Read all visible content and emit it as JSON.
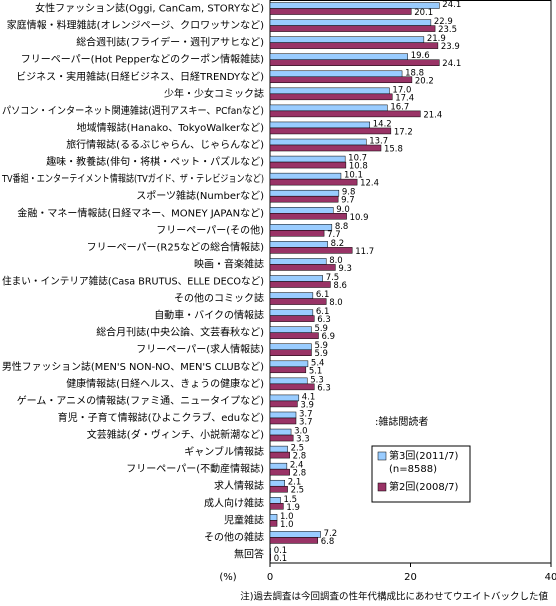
{
  "chart_data": {
    "type": "hbar",
    "categories": [
      "女性ファッション誌(Oggi, CanCam, STORYなど)",
      "家庭情報・料理雑誌(オレンジページ、クロワッサンなど)",
      "総合週刊誌(フライデー・週刊アサヒなど)",
      "フリーペーパー(Hot Pepperなどのクーポン情報雑誌)",
      "ビジネス・実用雑誌(日経ビジネス、日経TRENDYなど)",
      "少年・少女コミック誌",
      "パソコン・インターネット関連雑誌(週刊アスキー、PCfanなど)",
      "地域情報誌(Hanako、TokyoWalkerなど)",
      "旅行情報誌(るるぶじゃらん、じゃらんなど)",
      "趣味・教養誌(俳句・将棋・ペット・パズルなど)",
      "TV番組・エンターテイメント情報誌(TVガイド、ザ・テレビジョンなど)",
      "スポーツ雑誌(Numberなど)",
      "金融・マネー情報誌(日経マネー、MONEY JAPANなど)",
      "フリーペーパー(その他)",
      "フリーペーパー(R25などの総合情報誌)",
      "映画・音楽雑誌",
      "住まい・インテリア雑誌(Casa BRUTUS、ELLE DECOなど)",
      "その他のコミック誌",
      "自動車・バイクの情報誌",
      "総合月刊誌(中央公論、文芸春秋など)",
      "フリーペーパー(求人情報誌)",
      "男性ファッション誌(MEN'S NON-NO、MEN'S CLUBなど)",
      "健康情報誌(日経ヘルス、きょうの健康など)",
      "ゲーム・アニメの情報誌(ファミ通、ニュータイプなど)",
      "育児・子育て情報誌(ひよこクラブ、eduなど)",
      "文芸雑誌(ダ・ヴィンチ、小説新潮など)",
      "ギャンブル情報誌",
      "フリーペーパー(不動産情報誌)",
      "求人情報誌",
      "成人向け雑誌",
      "児童雑誌",
      "その他の雑誌",
      "無回答"
    ],
    "series": [
      {
        "name": "第3回(2011/7)",
        "note": "(n=8588)",
        "color": "#99ccff",
        "values": [
          24.1,
          22.9,
          21.9,
          19.6,
          18.8,
          17.0,
          16.7,
          14.2,
          13.7,
          10.7,
          10.1,
          9.8,
          9.0,
          8.8,
          8.2,
          8.0,
          7.5,
          6.1,
          6.1,
          5.9,
          5.9,
          5.4,
          5.3,
          4.1,
          3.7,
          3.0,
          2.5,
          2.4,
          2.1,
          1.5,
          1.0,
          7.2,
          0.1
        ],
        "value_labels": [
          "24.1",
          "22.9",
          "21.9",
          "19.6",
          "18.8",
          "17.0",
          "16.7",
          "14.2",
          "13.7",
          "10.7",
          "10.1",
          "9.8",
          "9.0",
          "8.8",
          "8.2",
          "8.0",
          "7.5",
          "6.1",
          "6.1",
          "5.9",
          "5.9",
          "5.4",
          "5.3",
          "4.1",
          "3.7",
          "3.0",
          "2.5",
          "2.4",
          "2.1",
          "1.5",
          "1.0",
          "7.2",
          "0.1"
        ]
      },
      {
        "name": "第2回(2008/7)",
        "color": "#993366",
        "values": [
          20.1,
          23.5,
          23.9,
          24.1,
          20.2,
          17.4,
          21.4,
          17.2,
          15.8,
          10.8,
          12.4,
          9.7,
          10.9,
          7.7,
          11.7,
          9.3,
          8.6,
          8.0,
          6.3,
          6.9,
          5.9,
          5.1,
          6.3,
          3.9,
          3.7,
          3.3,
          2.8,
          2.8,
          2.5,
          1.9,
          1.0,
          6.8,
          0.1
        ],
        "value_labels": [
          "20.1",
          "23.5",
          "23.9",
          "24.1",
          "20.2",
          "17.4",
          "21.4",
          "17.2",
          "15.8",
          "10.8",
          "12.4",
          "9.7",
          "10.9",
          "7.7",
          "11.7",
          "9.3",
          "8.6",
          "8.0",
          "6.3",
          "6.9",
          "5.9",
          "5.1",
          "6.3",
          "3.9",
          "3.7",
          "3.3",
          "2.8",
          "2.8",
          "2.5",
          "1.9",
          "1.0",
          "6.8",
          "0.1"
        ]
      }
    ],
    "xlim": [
      0,
      40
    ],
    "xticks": [
      0,
      20,
      40
    ],
    "x_unit_label": "(%)",
    "annotation": ":雑誌閲読者",
    "footnote": "注)過去調査は今回調査の性年代構成比にあわせてウエイトバックした値"
  }
}
